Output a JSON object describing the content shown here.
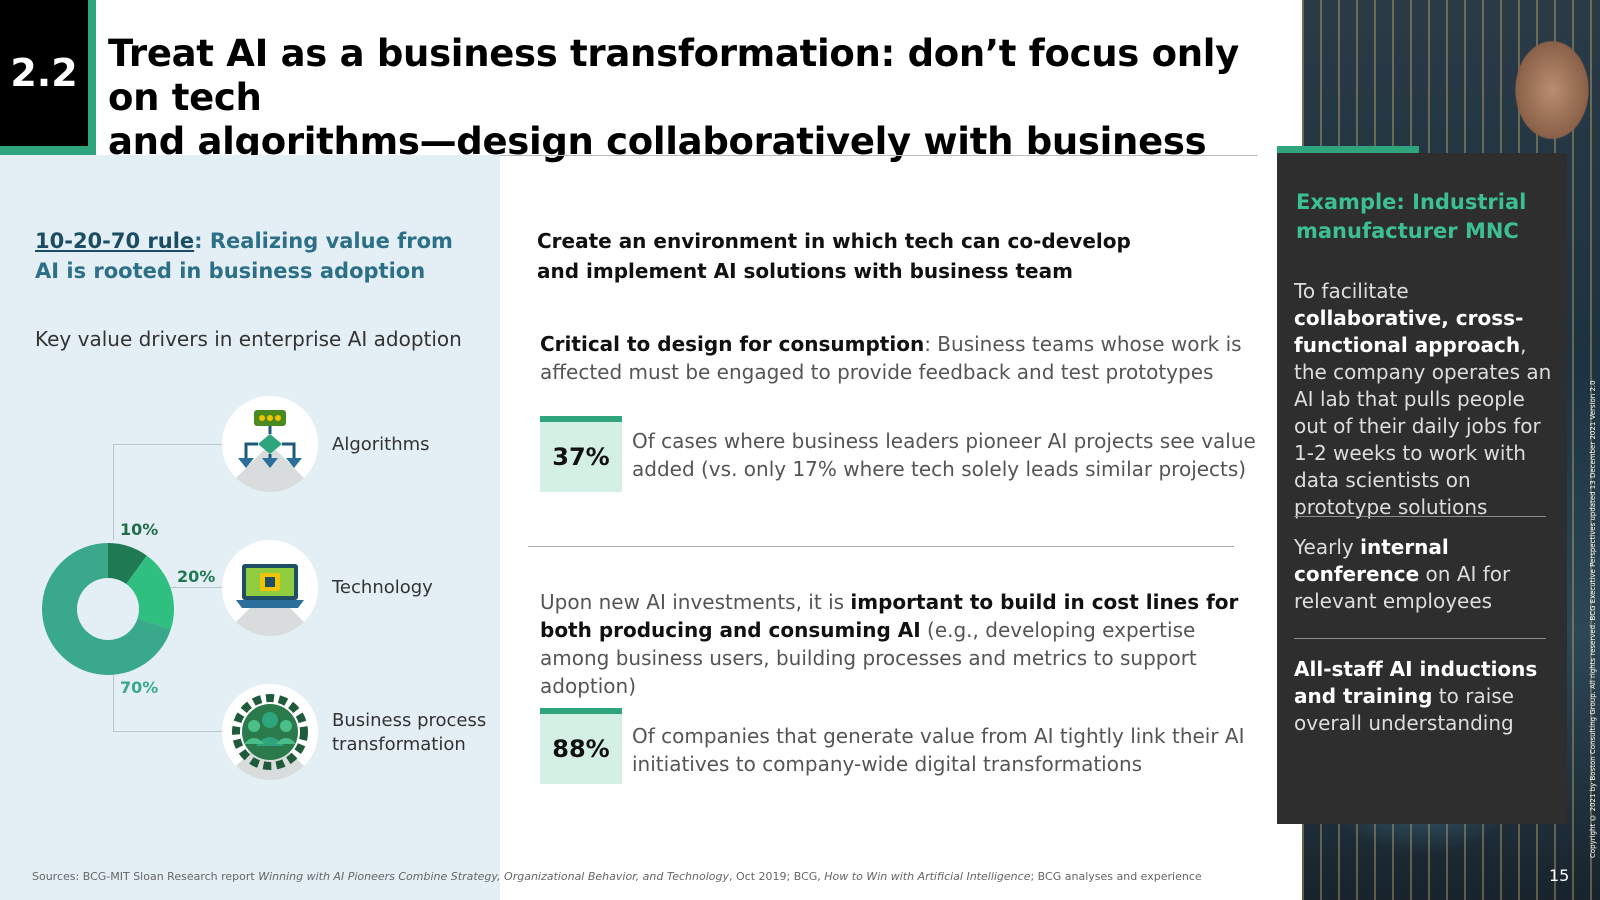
{
  "section_number": "2.2",
  "title_line1": "Treat AI as a business transformation: don’t focus only on tech",
  "title_line2": "and algorithms—design collaboratively with business owners",
  "left": {
    "rule_underlined": "10-20-70 rule",
    "rule_rest": ": Realizing value from AI is rooted in business adoption",
    "subheading": "Key value drivers in enterprise AI adoption",
    "chart_data": {
      "type": "pie",
      "categories": [
        "Algorithms",
        "Technology",
        "Business process transformation"
      ],
      "values": [
        10,
        20,
        70
      ],
      "labels": [
        "10%",
        "20%",
        "70%"
      ],
      "colors": [
        "#1f7a54",
        "#2fbf80",
        "#3aa88a"
      ]
    },
    "items": [
      {
        "label": "Algorithms",
        "icon": "flowchart-icon"
      },
      {
        "label": "Technology",
        "icon": "laptop-chip-icon"
      },
      {
        "label_line1": "Business process",
        "label_line2": "transformation",
        "icon": "people-gear-icon"
      }
    ]
  },
  "middle": {
    "heading": "Create an environment in which tech can co-develop and implement AI solutions with business team",
    "para1_bold": "Critical to design for consumption",
    "para1_rest": ": Business teams whose work is affected must be engaged to provide feedback and test prototypes",
    "stat1_value": "37%",
    "stat1_text": "Of cases where business leaders pioneer AI projects see value added (vs. only 17% where tech solely leads similar projects)",
    "para2_start": "Upon new AI investments, it is ",
    "para2_bold": "important to build in cost lines for both producing and consuming AI",
    "para2_rest": " (e.g., developing expertise among business users, building processes and metrics to support adoption)",
    "stat2_value": "88%",
    "stat2_text": "Of companies that generate value from AI tightly link their AI initiatives to company-wide digital transformations"
  },
  "example": {
    "title": "Example: Industrial manufacturer MNC",
    "item1_start": "To facilitate ",
    "item1_bold": "collaborative, cross-functional approach",
    "item1_rest": ", the company operates an AI lab that pulls people out of their daily jobs for 1-2 weeks to work with data scientists on prototype solutions",
    "item2_start": "Yearly ",
    "item2_bold": "internal conference",
    "item2_rest": " on AI for relevant employees",
    "item3_bold": "All-staff AI inductions and training",
    "item3_rest": " to raise overall understanding"
  },
  "sources": {
    "prefix": "Sources: BCG-MIT Sloan Research report ",
    "italic1": "Winning with AI Pioneers Combine Strategy, Organizational Behavior, and Technology",
    "mid": ", Oct 2019; BCG, ",
    "italic2": "How to Win with Artificial Intelligence",
    "suffix": "; BCG analyses and experience"
  },
  "copyright": "Copyright © 2021 by Boston Consulting Group. All rights reserved. BCG Executive Perspectives updated 13 December 2021 Version 2.0",
  "page_number": "15",
  "colors": {
    "accent": "#2fa57e",
    "heading_blue": "#2c6f87",
    "example_bg": "#2e2e2e"
  }
}
